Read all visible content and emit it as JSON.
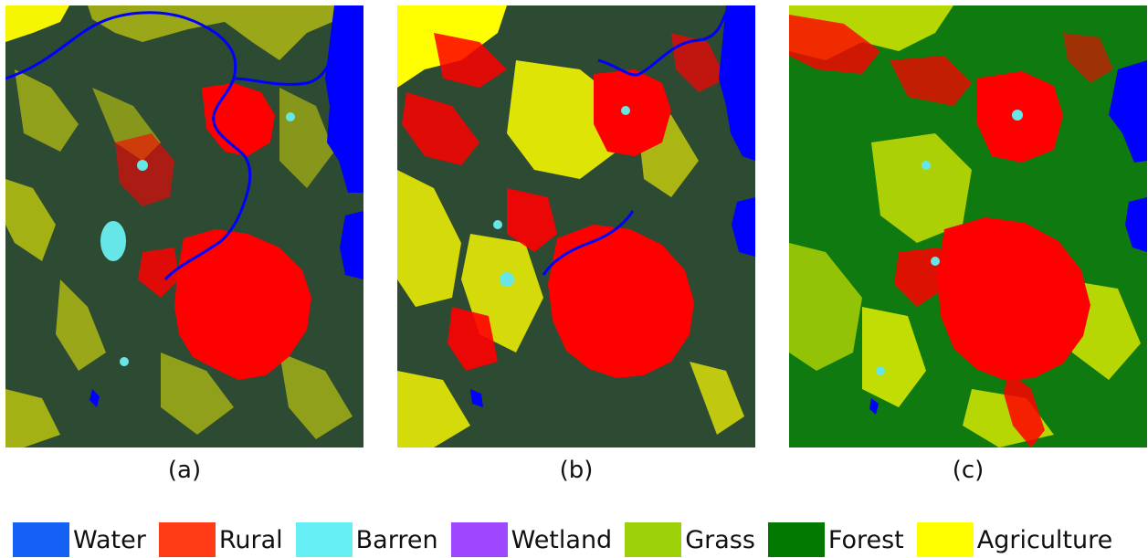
{
  "panels": [
    {
      "id": "a",
      "caption": "(a)",
      "background": "#2d4a32"
    },
    {
      "id": "b",
      "caption": "(b)",
      "background": "#2d4a32"
    },
    {
      "id": "c",
      "caption": "(c)",
      "background": "#0f7a0f"
    }
  ],
  "legend": [
    {
      "label": "Water",
      "color": "#1560f5"
    },
    {
      "label": "Rural",
      "color": "#ff3c16"
    },
    {
      "label": "Barren",
      "color": "#66f0f5"
    },
    {
      "label": "Wetland",
      "color": "#9e47ff"
    },
    {
      "label": "Grass",
      "color": "#9cd10a"
    },
    {
      "label": "Forest",
      "color": "#027a02"
    },
    {
      "label": "Agriculture",
      "color": "#ffff00"
    }
  ],
  "map_colors": {
    "water": "#0000ff",
    "rural": "#ff0000",
    "barren": "#66e6e6",
    "agriculture": "#ffff00",
    "forest_dark": "#2d4a32",
    "forest_green": "#0f7a0f"
  }
}
